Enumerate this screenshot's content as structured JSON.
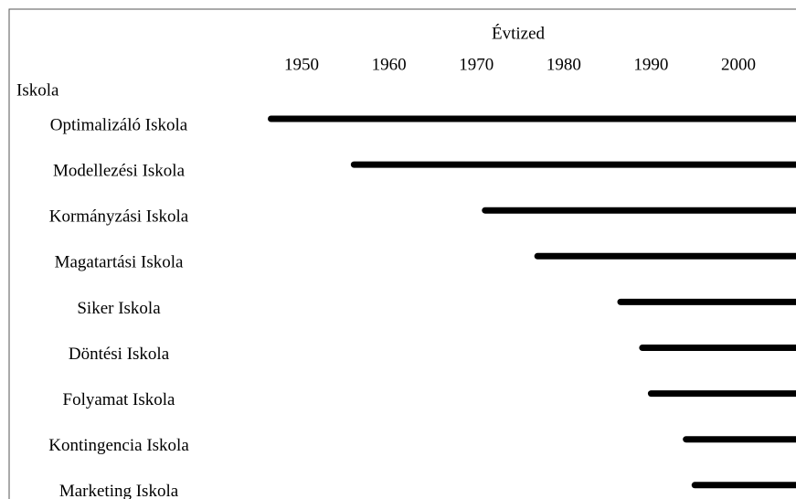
{
  "chart_data": {
    "type": "range",
    "xlabel": "Évtized",
    "ylabel": "Iskola",
    "categories": [
      "Optimalizáló Iskola",
      "Modellezési Iskola",
      "Kormányzási Iskola",
      "Magatartási Iskola",
      "Siker Iskola",
      "Döntési Iskola",
      "Folyamat Iskola",
      "Kontingencia Iskola",
      "Marketing Iskola"
    ],
    "values": [
      1946.5,
      1956,
      1971,
      1977,
      1986.5,
      1989,
      1990,
      1994,
      1995
    ],
    "color": "#000000",
    "xlim": [
      1940,
      2006
    ],
    "xticks": [
      1950,
      1960,
      1970,
      1980,
      1990,
      2000
    ]
  }
}
